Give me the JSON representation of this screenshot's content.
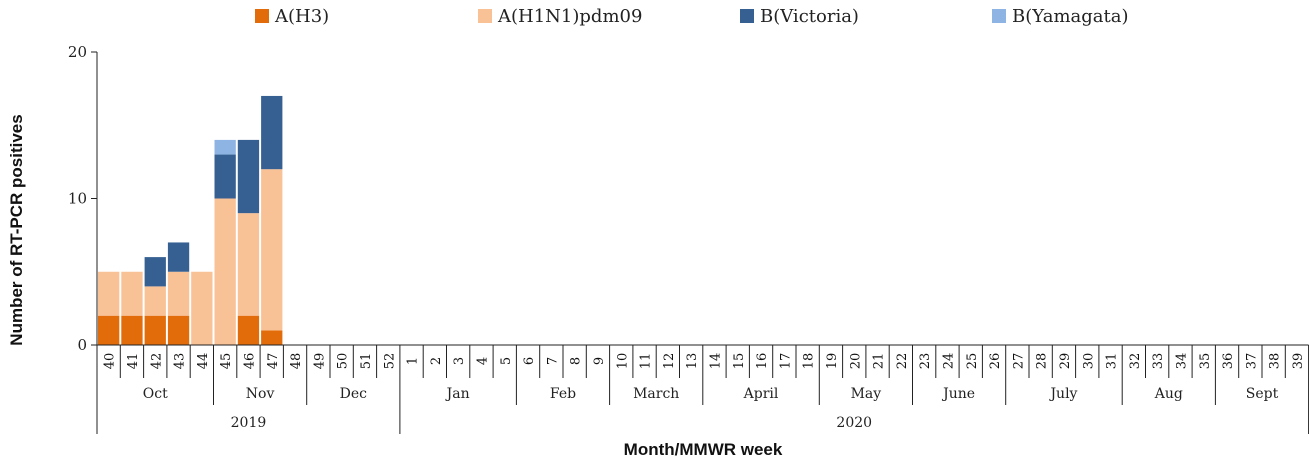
{
  "chart_data": {
    "type": "bar",
    "stacked": true,
    "ylabel": "Number of RT-PCR positives",
    "xlabel": "Month/MMWR week",
    "ylim": [
      0,
      20
    ],
    "yticks": [
      "0",
      "10",
      "20"
    ],
    "weeks": [
      "40",
      "41",
      "42",
      "43",
      "44",
      "45",
      "46",
      "47",
      "48",
      "49",
      "50",
      "51",
      "52",
      "1",
      "2",
      "3",
      "4",
      "5",
      "6",
      "7",
      "8",
      "9",
      "10",
      "11",
      "12",
      "13",
      "14",
      "15",
      "16",
      "17",
      "18",
      "19",
      "20",
      "21",
      "22",
      "23",
      "24",
      "25",
      "26",
      "27",
      "28",
      "29",
      "30",
      "31",
      "32",
      "33",
      "34",
      "35",
      "36",
      "37",
      "38",
      "39"
    ],
    "months": [
      {
        "label": "Oct",
        "start": 0,
        "end": 5
      },
      {
        "label": "Nov",
        "start": 5,
        "end": 9
      },
      {
        "label": "Dec",
        "start": 9,
        "end": 13
      },
      {
        "label": "Jan",
        "start": 13,
        "end": 18
      },
      {
        "label": "Feb",
        "start": 18,
        "end": 22
      },
      {
        "label": "March",
        "start": 22,
        "end": 26
      },
      {
        "label": "April",
        "start": 26,
        "end": 31
      },
      {
        "label": "May",
        "start": 31,
        "end": 35
      },
      {
        "label": "June",
        "start": 35,
        "end": 39
      },
      {
        "label": "July",
        "start": 39,
        "end": 44
      },
      {
        "label": "Aug",
        "start": 44,
        "end": 48
      },
      {
        "label": "Sept",
        "start": 48,
        "end": 52
      }
    ],
    "years": [
      {
        "label": "2019",
        "start": 0,
        "end": 13
      },
      {
        "label": "2020",
        "start": 13,
        "end": 52
      }
    ],
    "legend_position": "top",
    "series": [
      {
        "name": "A(H3)",
        "color": "#E36C0A",
        "values": [
          2,
          2,
          2,
          2,
          0,
          0,
          2,
          1,
          0,
          0,
          0,
          0,
          0,
          0,
          0,
          0,
          0,
          0,
          0,
          0,
          0,
          0,
          0,
          0,
          0,
          0,
          0,
          0,
          0,
          0,
          0,
          0,
          0,
          0,
          0,
          0,
          0,
          0,
          0,
          0,
          0,
          0,
          0,
          0,
          0,
          0,
          0,
          0,
          0,
          0,
          0,
          0
        ]
      },
      {
        "name": "A(H1N1)pdm09",
        "color": "#F9C196",
        "values": [
          3,
          3,
          2,
          3,
          5,
          10,
          7,
          11,
          0,
          0,
          0,
          0,
          0,
          0,
          0,
          0,
          0,
          0,
          0,
          0,
          0,
          0,
          0,
          0,
          0,
          0,
          0,
          0,
          0,
          0,
          0,
          0,
          0,
          0,
          0,
          0,
          0,
          0,
          0,
          0,
          0,
          0,
          0,
          0,
          0,
          0,
          0,
          0,
          0,
          0,
          0,
          0
        ]
      },
      {
        "name": "B(Victoria)",
        "color": "#376092",
        "values": [
          0,
          0,
          2,
          2,
          0,
          3,
          5,
          5,
          0,
          0,
          0,
          0,
          0,
          0,
          0,
          0,
          0,
          0,
          0,
          0,
          0,
          0,
          0,
          0,
          0,
          0,
          0,
          0,
          0,
          0,
          0,
          0,
          0,
          0,
          0,
          0,
          0,
          0,
          0,
          0,
          0,
          0,
          0,
          0,
          0,
          0,
          0,
          0,
          0,
          0,
          0,
          0
        ]
      },
      {
        "name": "B(Yamagata)",
        "color": "#8DB4E2",
        "values": [
          0,
          0,
          0,
          0,
          0,
          1,
          0,
          0,
          0,
          0,
          0,
          0,
          0,
          0,
          0,
          0,
          0,
          0,
          0,
          0,
          0,
          0,
          0,
          0,
          0,
          0,
          0,
          0,
          0,
          0,
          0,
          0,
          0,
          0,
          0,
          0,
          0,
          0,
          0,
          0,
          0,
          0,
          0,
          0,
          0,
          0,
          0,
          0,
          0,
          0,
          0,
          0
        ]
      }
    ]
  }
}
